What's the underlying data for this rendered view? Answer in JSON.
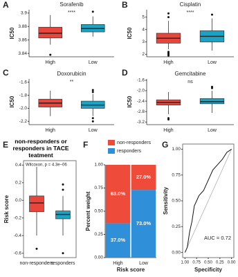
{
  "chart_data": [
    {
      "type": "box",
      "label": "A",
      "title": "Sorafenib",
      "ylabel": "IC50",
      "annotation": "****",
      "categories": [
        "High",
        "Low"
      ],
      "series": [
        {
          "color": "#e8453c",
          "min": 3.853,
          "q1": 3.863,
          "median": 3.87,
          "q3": 3.879,
          "max": 3.897,
          "outliers": [
            3.838
          ]
        },
        {
          "color": "#1ba3c6",
          "min": 3.865,
          "q1": 3.872,
          "median": 3.877,
          "q3": 3.883,
          "max": 3.895,
          "outliers": [
            3.902
          ]
        }
      ],
      "ylim": [
        3.835,
        3.905
      ],
      "yticks": [
        3.84,
        3.86,
        3.88,
        3.9
      ]
    },
    {
      "type": "box",
      "label": "B",
      "title": "Cisplatin",
      "ylabel": "IC50",
      "annotation": "****",
      "categories": [
        "High",
        "Low"
      ],
      "series": [
        {
          "color": "#e8453c",
          "min": 2.4,
          "q1": 2.9,
          "median": 3.3,
          "q3": 3.7,
          "max": 4.7,
          "outliers": [
            5.0,
            5.3,
            2.2,
            2.1,
            2.0,
            1.9
          ]
        },
        {
          "color": "#1ba3c6",
          "min": 2.3,
          "q1": 3.0,
          "median": 3.45,
          "q3": 3.9,
          "max": 4.9,
          "outliers": [
            5.2
          ]
        }
      ],
      "ylim": [
        1.8,
        5.6
      ],
      "yticks": [
        2,
        3,
        4,
        5
      ]
    },
    {
      "type": "box",
      "label": "C",
      "title": "Doxorubicin",
      "ylabel": "IC50",
      "annotation": "**",
      "categories": [
        "High",
        "Low"
      ],
      "series": [
        {
          "color": "#e8453c",
          "min": -2.12,
          "q1": -1.98,
          "median": -1.92,
          "q3": -1.86,
          "max": -1.73,
          "outliers": []
        },
        {
          "color": "#1ba3c6",
          "min": -2.12,
          "q1": -2.0,
          "median": -1.95,
          "q3": -1.89,
          "max": -1.78,
          "outliers": [
            -1.75,
            -1.72,
            -2.15,
            -2.2
          ]
        }
      ],
      "ylim": [
        -2.25,
        -1.55
      ],
      "yticks": [
        -2.2,
        {
          "value": -2,
          "label": "-2.0"
        },
        -1.8,
        -1.6
      ]
    },
    {
      "type": "box",
      "label": "D",
      "title": "Gemcitabine",
      "ylabel": "IC50",
      "annotation": "ns",
      "categories": [
        "High",
        "Low"
      ],
      "series": [
        {
          "color": "#e8453c",
          "min": -2.9,
          "q1": -2.55,
          "median": -2.45,
          "q3": -2.35,
          "max": -2.05,
          "outliers": [
            -3.05,
            -3.1
          ]
        },
        {
          "color": "#1ba3c6",
          "min": -2.85,
          "q1": -2.5,
          "median": -2.42,
          "q3": -2.3,
          "max": -2.0,
          "outliers": [
            -1.9,
            -1.85
          ]
        }
      ],
      "ylim": [
        -3.3,
        -1.55
      ],
      "yticks": [
        -3.2,
        -2.8,
        -2.4,
        {
          "value": -2,
          "label": "-2.0"
        },
        -1.6
      ]
    },
    {
      "type": "box",
      "label": "E",
      "title": "non-responders or responders in TACE teatment",
      "ylabel": "Risk score",
      "annotation": "Wilcoxon, p = 4.3e−06",
      "frame": true,
      "categories": [
        "non-responders",
        "responders"
      ],
      "series": [
        {
          "color": "#e8453c",
          "min": -0.4,
          "q1": -0.13,
          "median": -0.03,
          "q3": 0.05,
          "max": 0.38,
          "outliers": [
            -0.55
          ]
        },
        {
          "color": "#1ba3c6",
          "min": -0.4,
          "q1": -0.21,
          "median": -0.16,
          "q3": -0.12,
          "max": 0.05,
          "outliers": [
            0.12,
            0.18,
            -0.6
          ]
        }
      ],
      "ylim": [
        -0.65,
        0.45
      ],
      "yticks": [
        -0.6,
        -0.4,
        -0.2,
        {
          "value": 0,
          "label": "0.0"
        },
        0.2,
        0.4
      ]
    },
    {
      "type": "stacked_bar",
      "label": "F",
      "xlabel": "Risk score",
      "ylabel": "Percent weight",
      "categories": [
        "High",
        "Low"
      ],
      "series": [
        {
          "name": "non-responders",
          "color": "#ee4b3a",
          "values": [
            0.63,
            0.27
          ],
          "value_labels": [
            "63.0%",
            "27.0%"
          ]
        },
        {
          "name": "responders",
          "color": "#2f8fd8",
          "values": [
            0.37,
            0.73
          ],
          "value_labels": [
            "37.0%",
            "73.0%"
          ]
        }
      ],
      "ylim": [
        0,
        1
      ],
      "yticks": [
        {
          "value": 0,
          "label": "0.00"
        },
        0.25,
        {
          "value": 0.5,
          "label": "0.50"
        },
        0.75,
        {
          "value": 1,
          "label": "1.00"
        }
      ]
    },
    {
      "type": "line",
      "label": "G",
      "xlabel": "Specificity",
      "ylabel": "Sensitivity",
      "annotation": "AUC = 0.72",
      "frame": true,
      "x": [
        1,
        0.95,
        0.9,
        0.85,
        0.8,
        0.75,
        0.7,
        0.6,
        0.5,
        0.4,
        0.3,
        0.2,
        0.1,
        0
      ],
      "series": [
        {
          "color": "#111111",
          "values": [
            0,
            0.05,
            0.2,
            0.3,
            0.45,
            0.5,
            0.55,
            0.6,
            0.7,
            0.8,
            0.85,
            0.9,
            0.97,
            1
          ]
        }
      ],
      "xlim": [
        1.05,
        -0.05
      ],
      "xticks": [
        {
          "value": 1,
          "label": "1.00"
        },
        0.75,
        {
          "value": 0.5,
          "label": "0.50"
        },
        0.25,
        {
          "value": 0,
          "label": "0.00"
        }
      ],
      "ylim": [
        -0.05,
        1.05
      ],
      "yticks": [
        {
          "value": 0,
          "label": "0.00"
        },
        0.25,
        {
          "value": 0.5,
          "label": "0.50"
        },
        0.75,
        {
          "value": 1,
          "label": "1.00"
        }
      ]
    }
  ]
}
